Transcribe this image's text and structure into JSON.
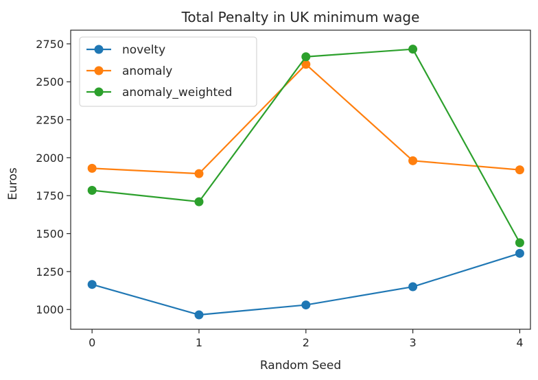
{
  "chart_data": {
    "type": "line",
    "title": "Total Penalty in UK minimum wage",
    "xlabel": "Random Seed",
    "ylabel": "Euros",
    "x": [
      0,
      1,
      2,
      3,
      4
    ],
    "xticks": [
      "0",
      "1",
      "2",
      "3",
      "4"
    ],
    "yticks": [
      "1000",
      "1250",
      "1500",
      "1750",
      "2000",
      "2250",
      "2500",
      "2750"
    ],
    "xlim": [
      -0.2,
      4.1
    ],
    "ylim": [
      870,
      2840
    ],
    "legend_position": "top-left",
    "grid": false,
    "series": [
      {
        "name": "novelty",
        "color": "#1f77b4",
        "values": [
          1165,
          965,
          1030,
          1150,
          1370
        ]
      },
      {
        "name": "anomaly",
        "color": "#ff7f0e",
        "values": [
          1930,
          1895,
          2615,
          1980,
          1920
        ]
      },
      {
        "name": "anomaly_weighted",
        "color": "#2ca02c",
        "values": [
          1785,
          1710,
          2665,
          2715,
          1440
        ]
      }
    ]
  }
}
